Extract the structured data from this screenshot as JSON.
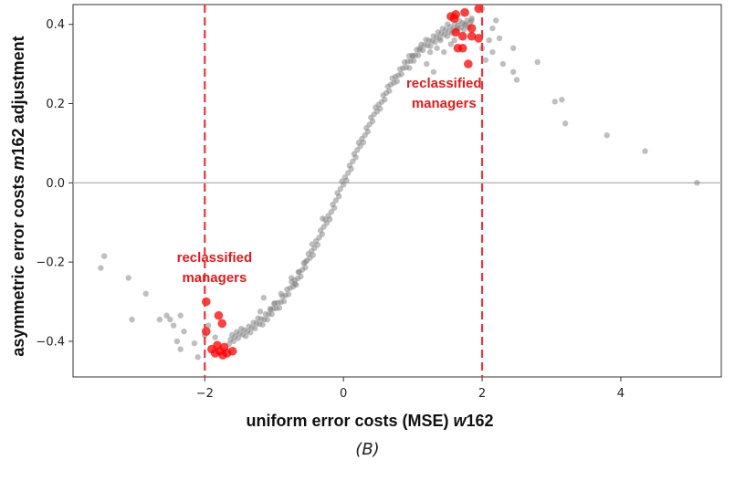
{
  "caption": "(B)",
  "chart_data": {
    "type": "scatter",
    "title": "",
    "xlabel_parts": [
      "uniform error costs (MSE) ",
      "w",
      "162"
    ],
    "ylabel_parts": [
      "asymmetric error costs ",
      "m",
      "162 adjustment"
    ],
    "xlim": [
      -3.9,
      5.45
    ],
    "ylim": [
      -0.49,
      0.45
    ],
    "x_ticks": [
      -2,
      0,
      2,
      4
    ],
    "x_tick_labels": [
      "−2",
      "0",
      "2",
      "4"
    ],
    "y_ticks": [
      -0.4,
      -0.2,
      0.0,
      0.2,
      0.4
    ],
    "y_tick_labels": [
      "−0.4",
      "−0.2",
      "0.0",
      "0.2",
      "0.4"
    ],
    "grid": false,
    "reference_lines": {
      "horizontal_y": 0.0,
      "vertical_x": [
        -2,
        2
      ],
      "vertical_style": "dashed",
      "vertical_color": "#e8373a"
    },
    "annotations": [
      {
        "lines": [
          "reclassified",
          "managers"
        ],
        "x": -1.86,
        "y": -0.2,
        "color": "#e31a1c"
      },
      {
        "lines": [
          "reclassified",
          "managers"
        ],
        "x": 1.45,
        "y": 0.24,
        "color": "#e31a1c"
      }
    ],
    "series": [
      {
        "color": "#808080",
        "curve": {
          "x_range": [
            -1.65,
            1.85
          ],
          "formula": "0.43*tanh(0.95*x)",
          "count": 160
        },
        "points": [
          [
            -3.45,
            -0.185
          ],
          [
            -3.5,
            -0.215
          ],
          [
            -3.1,
            -0.24
          ],
          [
            -2.85,
            -0.28
          ],
          [
            -3.05,
            -0.345
          ],
          [
            -2.65,
            -0.345
          ],
          [
            -2.55,
            -0.335
          ],
          [
            -2.5,
            -0.345
          ],
          [
            -2.35,
            -0.335
          ],
          [
            -2.45,
            -0.36
          ],
          [
            -2.3,
            -0.375
          ],
          [
            -2.4,
            -0.4
          ],
          [
            -2.35,
            -0.42
          ],
          [
            -2.15,
            -0.405
          ],
          [
            -2.1,
            -0.44
          ],
          [
            -2.0,
            -0.385
          ],
          [
            -1.85,
            -0.39
          ],
          [
            -1.95,
            -0.36
          ],
          [
            -1.15,
            -0.29
          ],
          [
            -1.2,
            -0.325
          ],
          [
            -1.05,
            -0.32
          ],
          [
            -0.9,
            -0.28
          ],
          [
            -1.0,
            -0.305
          ],
          [
            -0.7,
            -0.255
          ],
          [
            -0.75,
            -0.24
          ],
          [
            -0.55,
            -0.2
          ],
          [
            -0.65,
            -0.225
          ],
          [
            -0.45,
            -0.155
          ],
          [
            -0.3,
            -0.09
          ],
          [
            1.0,
            0.32
          ],
          [
            1.1,
            0.34
          ],
          [
            1.25,
            0.33
          ],
          [
            1.35,
            0.34
          ],
          [
            1.2,
            0.3
          ],
          [
            1.45,
            0.33
          ],
          [
            1.3,
            0.28
          ],
          [
            0.95,
            0.29
          ],
          [
            1.55,
            0.35
          ],
          [
            1.6,
            0.36
          ],
          [
            1.5,
            0.4
          ],
          [
            1.65,
            0.39
          ],
          [
            1.75,
            0.4
          ],
          [
            1.85,
            0.41
          ],
          [
            2.0,
            0.44
          ],
          [
            2.15,
            0.39
          ],
          [
            2.2,
            0.41
          ],
          [
            2.1,
            0.36
          ],
          [
            2.25,
            0.365
          ],
          [
            2.15,
            0.33
          ],
          [
            2.0,
            0.34
          ],
          [
            2.3,
            0.3
          ],
          [
            2.45,
            0.28
          ],
          [
            2.5,
            0.26
          ],
          [
            2.45,
            0.34
          ],
          [
            2.8,
            0.305
          ],
          [
            3.05,
            0.205
          ],
          [
            3.15,
            0.21
          ],
          [
            3.2,
            0.15
          ],
          [
            3.8,
            0.12
          ],
          [
            4.35,
            0.08
          ],
          [
            5.1,
            0.0
          ],
          [
            1.4,
            0.36
          ],
          [
            2.05,
            0.31
          ]
        ]
      },
      {
        "color": "#ff0000",
        "points": [
          [
            -1.98,
            -0.3
          ],
          [
            -1.98,
            -0.375
          ],
          [
            -1.8,
            -0.335
          ],
          [
            -1.75,
            -0.355
          ],
          [
            -1.9,
            -0.42
          ],
          [
            -1.85,
            -0.43
          ],
          [
            -1.82,
            -0.41
          ],
          [
            -1.72,
            -0.415
          ],
          [
            -1.68,
            -0.43
          ],
          [
            -1.6,
            -0.425
          ],
          [
            -1.78,
            -0.425
          ],
          [
            -1.74,
            -0.435
          ],
          [
            1.55,
            0.42
          ],
          [
            1.6,
            0.415
          ],
          [
            1.62,
            0.425
          ],
          [
            1.75,
            0.43
          ],
          [
            1.95,
            0.44
          ],
          [
            1.62,
            0.38
          ],
          [
            1.72,
            0.37
          ],
          [
            1.85,
            0.39
          ],
          [
            1.85,
            0.37
          ],
          [
            1.95,
            0.365
          ],
          [
            1.65,
            0.34
          ],
          [
            1.72,
            0.34
          ],
          [
            1.8,
            0.3
          ]
        ]
      }
    ]
  }
}
